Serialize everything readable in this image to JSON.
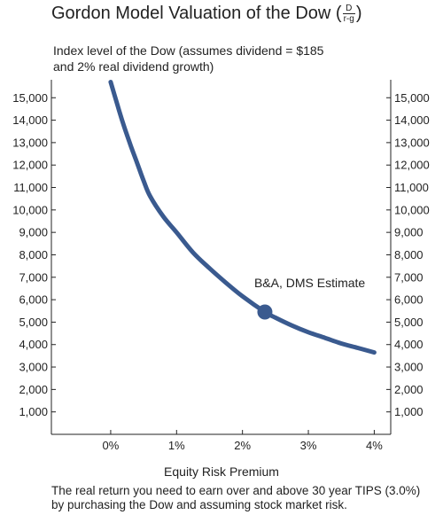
{
  "header": {
    "title": "Gordon Model Valuation of the Dow (",
    "title_end": ")",
    "formula_num": "D",
    "formula_den": "r-g"
  },
  "subtitle_lines": [
    "Index level of the Dow (assumes dividend = $185",
    "and 2% real dividend growth)"
  ],
  "caption_lines": [
    "The real return you need to earn over and above 30 year TIPS (3.0%)",
    "by purchasing the Dow and assuming stock market risk."
  ],
  "chart_data": {
    "type": "line",
    "title": "Gordon Model Valuation of the Dow (D/r-g)",
    "xlabel": "Equity Risk Premium",
    "ylabel": "Index level of the Dow (assumes dividend = $185 and 2% real dividend growth)",
    "xlim": [
      -0.9,
      4.25
    ],
    "ylim": [
      0,
      15800
    ],
    "x_ticks": [
      0,
      1,
      2,
      3,
      4
    ],
    "x_tick_labels": [
      "0%",
      "1%",
      "2%",
      "3%",
      "4%"
    ],
    "y_ticks": [
      1000,
      2000,
      3000,
      4000,
      5000,
      6000,
      7000,
      8000,
      9000,
      10000,
      11000,
      12000,
      13000,
      14000,
      15000
    ],
    "y_tick_labels": [
      "1,000",
      "2,000",
      "3,000",
      "4,000",
      "5,000",
      "6,000",
      "7,000",
      "8,000",
      "9,000",
      "10,000",
      "11,000",
      "12,000",
      "13,000",
      "14,000",
      "15,000"
    ],
    "grid": false,
    "series": [
      {
        "x": [
          0.0,
          0.1,
          0.2,
          0.3,
          0.4,
          0.5,
          0.6,
          0.8,
          1.0,
          1.25,
          1.5,
          1.75,
          2.0,
          2.34,
          2.5,
          2.75,
          3.0,
          3.25,
          3.5,
          3.75,
          4.0
        ],
        "y": [
          15700,
          14700,
          13750,
          12900,
          12100,
          11300,
          10600,
          9700,
          9000,
          8100,
          7400,
          6750,
          6150,
          5450,
          5200,
          4850,
          4550,
          4300,
          4050,
          3850,
          3650
        ],
        "color": "#3a5a8f"
      }
    ],
    "annotations": [
      {
        "x": 2.34,
        "y": 5450,
        "text": "B&A, DMS Estimate"
      }
    ]
  }
}
